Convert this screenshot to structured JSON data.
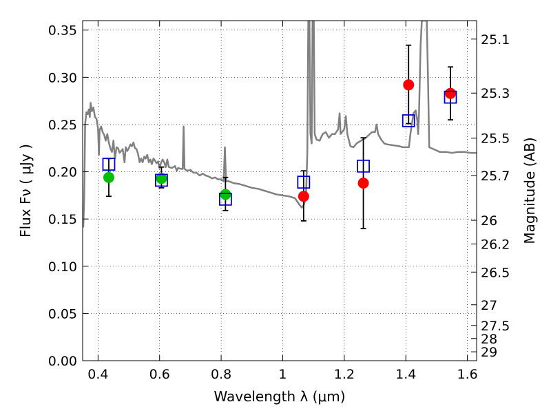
{
  "chart_data": {
    "type": "scatter",
    "x_label": "Wavelength  λ (μm)",
    "y_label": "Flux  Fν  ( μJy )",
    "y2_label": "Magnitude (AB)",
    "xlim": [
      0.35,
      1.63
    ],
    "ylim": [
      0.0,
      0.36
    ],
    "x_ticks": [
      0.4,
      0.6,
      0.8,
      1.0,
      1.2,
      1.4,
      1.6
    ],
    "x_tick_labels": [
      "0.4",
      "0.6",
      "0.8",
      "1",
      "1.2",
      "1.4",
      "1.6"
    ],
    "y_ticks": [
      0.0,
      0.05,
      0.1,
      0.15,
      0.2,
      0.25,
      0.3,
      0.35
    ],
    "y_tick_labels": [
      "0.00",
      "0.05",
      "0.10",
      "0.15",
      "0.20",
      "0.25",
      "0.30",
      "0.35"
    ],
    "y2_ticks": [
      {
        "label": "25.1",
        "flux": 0.3405
      },
      {
        "label": "25.3",
        "flux": 0.2833
      },
      {
        "label": "25.5",
        "flux": 0.2356
      },
      {
        "label": "25.7",
        "flux": 0.196
      },
      {
        "label": "26",
        "flux": 0.1486
      },
      {
        "label": "26.2",
        "flux": 0.1236
      },
      {
        "label": "26.5",
        "flux": 0.0938
      },
      {
        "label": "27",
        "flux": 0.0592
      },
      {
        "label": "27.5",
        "flux": 0.0373
      },
      {
        "label": "28",
        "flux": 0.0235
      },
      {
        "label": "29",
        "flux": 0.0094
      }
    ],
    "grid": true,
    "colors": {
      "model_spectrum": "#808080",
      "green_points": "#00c000",
      "red_points": "#ff0000",
      "model_squares": "#0000cc",
      "errorbars": "#000000"
    },
    "observed_points": [
      {
        "x": 0.435,
        "y": 0.194,
        "yerr_low": 0.02,
        "yerr_high": 0.02,
        "color": "green"
      },
      {
        "x": 0.606,
        "y": 0.193,
        "yerr_low": 0.01,
        "yerr_high": 0.012,
        "color": "green"
      },
      {
        "x": 0.814,
        "y": 0.176,
        "yerr_low": 0.017,
        "yerr_high": 0.018,
        "color": "green"
      },
      {
        "x": 1.068,
        "y": 0.174,
        "yerr_low": 0.026,
        "yerr_high": 0.027,
        "color": "red"
      },
      {
        "x": 1.262,
        "y": 0.188,
        "yerr_low": 0.048,
        "yerr_high": 0.048,
        "color": "red"
      },
      {
        "x": 1.409,
        "y": 0.292,
        "yerr_low": 0.041,
        "yerr_high": 0.042,
        "color": "red"
      },
      {
        "x": 1.545,
        "y": 0.283,
        "yerr_low": 0.028,
        "yerr_high": 0.028,
        "color": "red"
      }
    ],
    "model_photometry": [
      {
        "x": 0.435,
        "y": 0.208
      },
      {
        "x": 0.606,
        "y": 0.191
      },
      {
        "x": 0.814,
        "y": 0.171
      },
      {
        "x": 1.068,
        "y": 0.189
      },
      {
        "x": 1.262,
        "y": 0.206
      },
      {
        "x": 1.409,
        "y": 0.254
      },
      {
        "x": 1.545,
        "y": 0.279
      }
    ],
    "model_spectrum": [
      [
        0.352,
        0.141
      ],
      [
        0.355,
        0.17
      ],
      [
        0.358,
        0.25
      ],
      [
        0.362,
        0.263
      ],
      [
        0.366,
        0.261
      ],
      [
        0.37,
        0.266
      ],
      [
        0.373,
        0.258
      ],
      [
        0.376,
        0.273
      ],
      [
        0.38,
        0.264
      ],
      [
        0.385,
        0.268
      ],
      [
        0.39,
        0.258
      ],
      [
        0.395,
        0.256
      ],
      [
        0.4,
        0.246
      ],
      [
        0.403,
        0.218
      ],
      [
        0.405,
        0.244
      ],
      [
        0.41,
        0.248
      ],
      [
        0.415,
        0.242
      ],
      [
        0.42,
        0.239
      ],
      [
        0.425,
        0.233
      ],
      [
        0.43,
        0.24
      ],
      [
        0.435,
        0.231
      ],
      [
        0.44,
        0.225
      ],
      [
        0.445,
        0.221
      ],
      [
        0.45,
        0.233
      ],
      [
        0.455,
        0.214
      ],
      [
        0.46,
        0.226
      ],
      [
        0.465,
        0.225
      ],
      [
        0.47,
        0.22
      ],
      [
        0.475,
        0.222
      ],
      [
        0.48,
        0.224
      ],
      [
        0.486,
        0.21
      ],
      [
        0.49,
        0.226
      ],
      [
        0.495,
        0.222
      ],
      [
        0.5,
        0.225
      ],
      [
        0.505,
        0.229
      ],
      [
        0.51,
        0.227
      ],
      [
        0.515,
        0.231
      ],
      [
        0.52,
        0.225
      ],
      [
        0.525,
        0.224
      ],
      [
        0.53,
        0.219
      ],
      [
        0.535,
        0.21
      ],
      [
        0.54,
        0.214
      ],
      [
        0.545,
        0.21
      ],
      [
        0.55,
        0.216
      ],
      [
        0.555,
        0.214
      ],
      [
        0.56,
        0.218
      ],
      [
        0.565,
        0.21
      ],
      [
        0.57,
        0.213
      ],
      [
        0.575,
        0.208
      ],
      [
        0.58,
        0.214
      ],
      [
        0.585,
        0.212
      ],
      [
        0.59,
        0.209
      ],
      [
        0.595,
        0.211
      ],
      [
        0.6,
        0.204
      ],
      [
        0.605,
        0.21
      ],
      [
        0.61,
        0.213
      ],
      [
        0.615,
        0.21
      ],
      [
        0.62,
        0.205
      ],
      [
        0.625,
        0.213
      ],
      [
        0.63,
        0.205
      ],
      [
        0.64,
        0.204
      ],
      [
        0.65,
        0.206
      ],
      [
        0.656,
        0.201
      ],
      [
        0.66,
        0.204
      ],
      [
        0.67,
        0.203
      ],
      [
        0.675,
        0.203
      ],
      [
        0.678,
        0.248
      ],
      [
        0.681,
        0.203
      ],
      [
        0.69,
        0.201
      ],
      [
        0.7,
        0.202
      ],
      [
        0.71,
        0.199
      ],
      [
        0.72,
        0.199
      ],
      [
        0.73,
        0.196
      ],
      [
        0.74,
        0.198
      ],
      [
        0.75,
        0.196
      ],
      [
        0.76,
        0.195
      ],
      [
        0.77,
        0.193
      ],
      [
        0.78,
        0.194
      ],
      [
        0.79,
        0.192
      ],
      [
        0.8,
        0.192
      ],
      [
        0.808,
        0.19
      ],
      [
        0.812,
        0.226
      ],
      [
        0.816,
        0.19
      ],
      [
        0.825,
        0.19
      ],
      [
        0.84,
        0.188
      ],
      [
        0.86,
        0.187
      ],
      [
        0.88,
        0.185
      ],
      [
        0.9,
        0.183
      ],
      [
        0.92,
        0.182
      ],
      [
        0.94,
        0.18
      ],
      [
        0.96,
        0.178
      ],
      [
        0.98,
        0.176
      ],
      [
        1.0,
        0.175
      ],
      [
        1.02,
        0.174
      ],
      [
        1.04,
        0.172
      ],
      [
        1.055,
        0.165
      ],
      [
        1.062,
        0.162
      ],
      [
        1.07,
        0.166
      ],
      [
        1.076,
        0.176
      ],
      [
        1.08,
        0.22
      ],
      [
        1.083,
        0.36
      ],
      [
        1.087,
        0.36
      ],
      [
        1.09,
        0.24
      ],
      [
        1.094,
        0.23
      ],
      [
        1.097,
        0.36
      ],
      [
        1.101,
        0.36
      ],
      [
        1.104,
        0.24
      ],
      [
        1.11,
        0.234
      ],
      [
        1.12,
        0.233
      ],
      [
        1.13,
        0.24
      ],
      [
        1.14,
        0.242
      ],
      [
        1.15,
        0.236
      ],
      [
        1.16,
        0.24
      ],
      [
        1.17,
        0.24
      ],
      [
        1.18,
        0.245
      ],
      [
        1.185,
        0.262
      ],
      [
        1.188,
        0.24
      ],
      [
        1.2,
        0.245
      ],
      [
        1.205,
        0.259
      ],
      [
        1.21,
        0.24
      ],
      [
        1.22,
        0.227
      ],
      [
        1.23,
        0.226
      ],
      [
        1.24,
        0.23
      ],
      [
        1.25,
        0.232
      ],
      [
        1.26,
        0.234
      ],
      [
        1.27,
        0.236
      ],
      [
        1.28,
        0.239
      ],
      [
        1.29,
        0.242
      ],
      [
        1.3,
        0.242
      ],
      [
        1.305,
        0.25
      ],
      [
        1.31,
        0.24
      ],
      [
        1.32,
        0.234
      ],
      [
        1.33,
        0.23
      ],
      [
        1.34,
        0.229
      ],
      [
        1.36,
        0.228
      ],
      [
        1.38,
        0.227
      ],
      [
        1.39,
        0.226
      ],
      [
        1.4,
        0.226
      ],
      [
        1.41,
        0.226
      ],
      [
        1.415,
        0.24
      ],
      [
        1.425,
        0.262
      ],
      [
        1.432,
        0.265
      ],
      [
        1.437,
        0.255
      ],
      [
        1.44,
        0.24
      ],
      [
        1.443,
        0.262
      ],
      [
        1.448,
        0.335
      ],
      [
        1.452,
        0.36
      ],
      [
        1.468,
        0.36
      ],
      [
        1.472,
        0.3
      ],
      [
        1.476,
        0.226
      ],
      [
        1.49,
        0.224
      ],
      [
        1.51,
        0.221
      ],
      [
        1.53,
        0.221
      ],
      [
        1.55,
        0.22
      ],
      [
        1.57,
        0.221
      ],
      [
        1.59,
        0.221
      ],
      [
        1.61,
        0.22
      ],
      [
        1.63,
        0.22
      ]
    ]
  }
}
